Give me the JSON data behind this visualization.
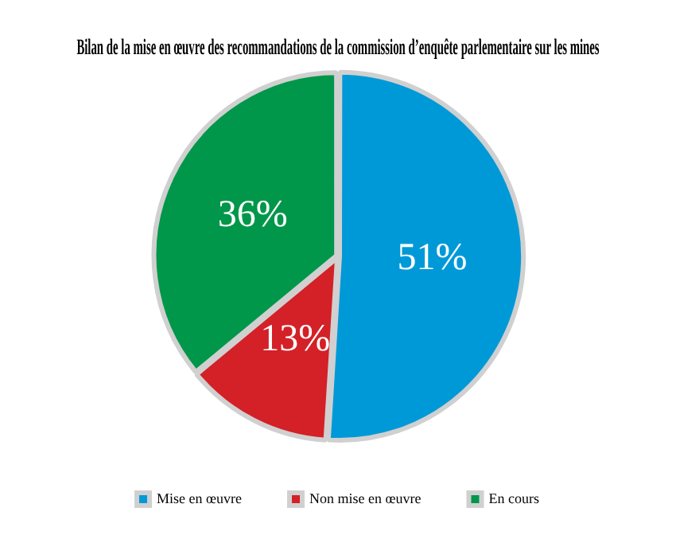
{
  "chart_data": {
    "type": "pie",
    "title": "Bilan de la mise en œuvre des recommandations de la commission d’enquête parlementaire sur les mines",
    "categories": [
      "Mise en œuvre",
      "Non mise en œuvre",
      "En cours"
    ],
    "values": [
      51,
      13,
      36
    ],
    "colors": [
      "#0099d8",
      "#d42027",
      "#00974a"
    ],
    "value_labels": [
      "51%",
      "13%",
      "36%"
    ],
    "legend": "bottom"
  }
}
